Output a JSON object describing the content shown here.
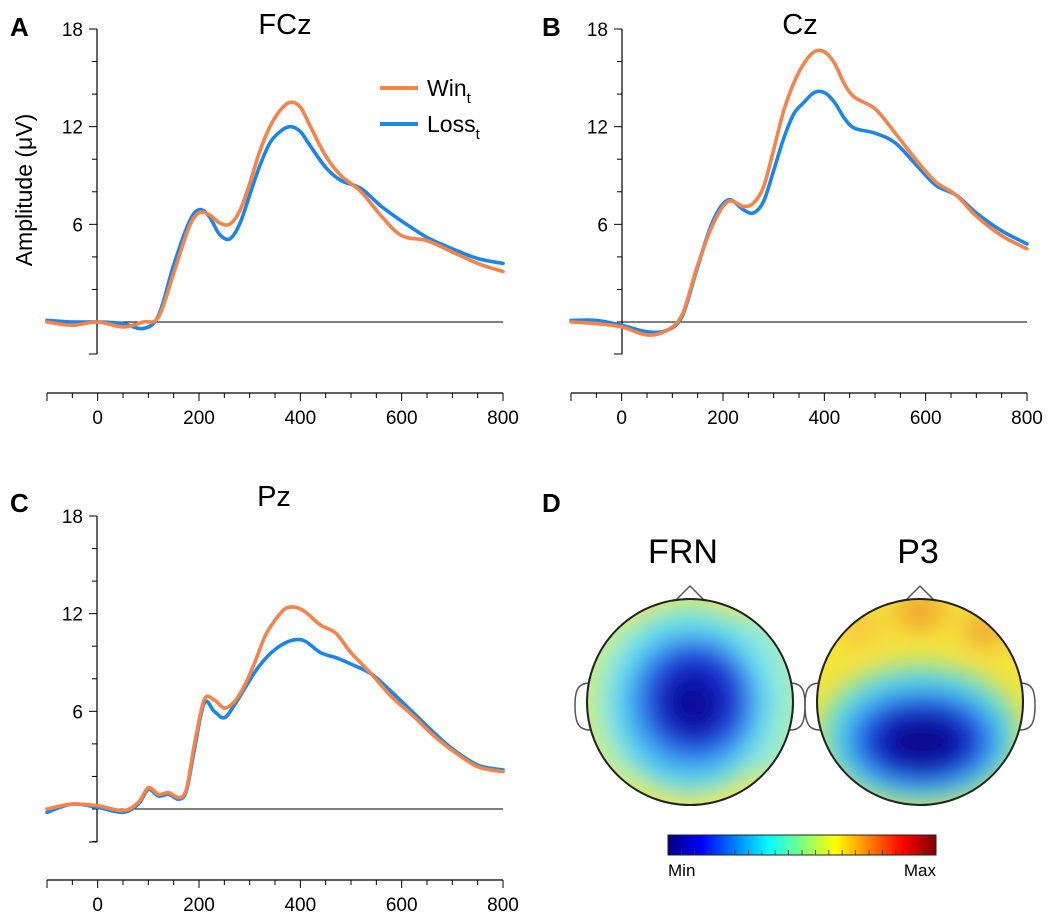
{
  "panels": [
    {
      "letter": "A",
      "title": "FCz"
    },
    {
      "letter": "B",
      "title": "Cz"
    },
    {
      "letter": "C",
      "title": "Pz"
    },
    {
      "letter": "D",
      "title": ""
    }
  ],
  "ylabel": "Amplitude (μV)",
  "legend": [
    {
      "base": "Win",
      "sub": "t",
      "color": "#F5834A"
    },
    {
      "base": "Loss",
      "sub": "t",
      "color": "#1C86E8"
    }
  ],
  "chart_data": [
    {
      "type": "line",
      "title": "FCz",
      "xlabel": "",
      "ylabel": "Amplitude (μV)",
      "xlim": [
        -100,
        800
      ],
      "ylim": [
        -2,
        18
      ],
      "xticks": [
        0,
        200,
        400,
        600,
        800
      ],
      "yticks": [
        6,
        12,
        18
      ],
      "series": [
        {
          "name": "Win_t",
          "color": "#F5834A",
          "x": [
            -100,
            -50,
            0,
            50,
            90,
            120,
            150,
            180,
            200,
            220,
            240,
            260,
            280,
            300,
            320,
            340,
            360,
            380,
            400,
            420,
            450,
            480,
            520,
            560,
            600,
            650,
            700,
            750,
            800
          ],
          "y": [
            0,
            -0.2,
            0,
            -0.3,
            0,
            0.3,
            3,
            5.8,
            6.7,
            6.6,
            6.1,
            6.0,
            6.8,
            8.5,
            10.5,
            12.0,
            13.0,
            13.5,
            13.2,
            12.0,
            10.2,
            9.0,
            8.0,
            6.5,
            5.3,
            5.0,
            4.3,
            3.6,
            3.1
          ]
        },
        {
          "name": "Loss_t",
          "color": "#1C86E8",
          "x": [
            -100,
            -50,
            0,
            50,
            90,
            120,
            150,
            180,
            200,
            220,
            240,
            260,
            280,
            300,
            320,
            340,
            360,
            380,
            400,
            420,
            450,
            480,
            520,
            560,
            600,
            650,
            700,
            750,
            800
          ],
          "y": [
            0.1,
            0,
            0,
            -0.1,
            -0.4,
            0.4,
            3.5,
            6.1,
            6.9,
            6.5,
            5.4,
            5.1,
            6.0,
            7.8,
            9.6,
            11.0,
            11.7,
            12.0,
            11.7,
            10.8,
            9.5,
            8.7,
            8.2,
            7.1,
            6.2,
            5.2,
            4.5,
            3.9,
            3.6
          ]
        }
      ]
    },
    {
      "type": "line",
      "title": "Cz",
      "xlabel": "",
      "ylabel": "",
      "xlim": [
        -100,
        800
      ],
      "ylim": [
        -2,
        18
      ],
      "xticks": [
        0,
        200,
        400,
        600,
        800
      ],
      "yticks": [
        6,
        12,
        18
      ],
      "series": [
        {
          "name": "Win_t",
          "color": "#F5834A",
          "x": [
            -100,
            -50,
            0,
            50,
            90,
            120,
            150,
            180,
            210,
            240,
            260,
            280,
            300,
            320,
            340,
            360,
            380,
            400,
            420,
            440,
            460,
            500,
            540,
            580,
            620,
            660,
            700,
            750,
            800
          ],
          "y": [
            0,
            -0.1,
            -0.3,
            -0.8,
            -0.5,
            0.5,
            3.5,
            6.0,
            7.4,
            7.1,
            7.3,
            8.3,
            10.6,
            13.0,
            14.7,
            15.9,
            16.6,
            16.6,
            15.9,
            14.6,
            13.8,
            13.1,
            11.6,
            10.0,
            8.6,
            7.8,
            6.5,
            5.3,
            4.5
          ]
        },
        {
          "name": "Loss_t",
          "color": "#1C86E8",
          "x": [
            -100,
            -50,
            0,
            50,
            90,
            120,
            150,
            180,
            210,
            240,
            260,
            280,
            300,
            320,
            340,
            360,
            380,
            400,
            420,
            440,
            460,
            500,
            540,
            580,
            620,
            660,
            700,
            750,
            800
          ],
          "y": [
            0.1,
            0.1,
            -0.2,
            -0.6,
            -0.5,
            0.4,
            3.4,
            6.2,
            7.5,
            6.9,
            6.7,
            7.4,
            9.3,
            11.3,
            12.8,
            13.5,
            14.1,
            14.1,
            13.5,
            12.5,
            11.9,
            11.6,
            11.0,
            9.7,
            8.4,
            7.8,
            6.7,
            5.6,
            4.8
          ]
        }
      ]
    },
    {
      "type": "line",
      "title": "Pz",
      "xlabel": "",
      "ylabel": "",
      "xlim": [
        -100,
        800
      ],
      "ylim": [
        -2,
        18
      ],
      "xticks": [
        0,
        200,
        400,
        600,
        800
      ],
      "yticks": [
        6,
        12,
        18
      ],
      "series": [
        {
          "name": "Win_t",
          "color": "#F5834A",
          "x": [
            -100,
            -50,
            0,
            50,
            80,
            100,
            120,
            140,
            160,
            175,
            190,
            210,
            230,
            250,
            270,
            290,
            310,
            330,
            350,
            370,
            390,
            410,
            440,
            470,
            500,
            540,
            580,
            620,
            660,
            700,
            750,
            800
          ],
          "y": [
            0,
            0.3,
            0.2,
            -0.1,
            0.4,
            1.3,
            0.9,
            1.0,
            0.7,
            1.2,
            3.8,
            6.7,
            6.7,
            6.2,
            6.6,
            7.6,
            9.0,
            10.6,
            11.6,
            12.3,
            12.4,
            12.1,
            11.3,
            10.8,
            9.6,
            8.3,
            6.9,
            5.8,
            4.6,
            3.6,
            2.6,
            2.3
          ]
        },
        {
          "name": "Loss_t",
          "color": "#1C86E8",
          "x": [
            -100,
            -50,
            0,
            50,
            80,
            100,
            120,
            140,
            160,
            175,
            190,
            210,
            230,
            250,
            270,
            290,
            310,
            330,
            350,
            370,
            390,
            410,
            440,
            470,
            500,
            540,
            580,
            620,
            660,
            700,
            750,
            800
          ],
          "y": [
            -0.2,
            0.3,
            0.1,
            -0.2,
            0.3,
            1.2,
            0.8,
            0.9,
            0.6,
            1.1,
            3.5,
            6.5,
            6.0,
            5.6,
            6.4,
            7.4,
            8.4,
            9.2,
            9.8,
            10.2,
            10.4,
            10.3,
            9.6,
            9.3,
            8.9,
            8.3,
            7.2,
            6.0,
            4.8,
            3.7,
            2.7,
            2.4
          ]
        }
      ]
    }
  ],
  "topomaps": [
    {
      "title": "FRN"
    },
    {
      "title": "P3"
    }
  ],
  "colorbar": {
    "min_label": "Min",
    "max_label": "Max"
  }
}
